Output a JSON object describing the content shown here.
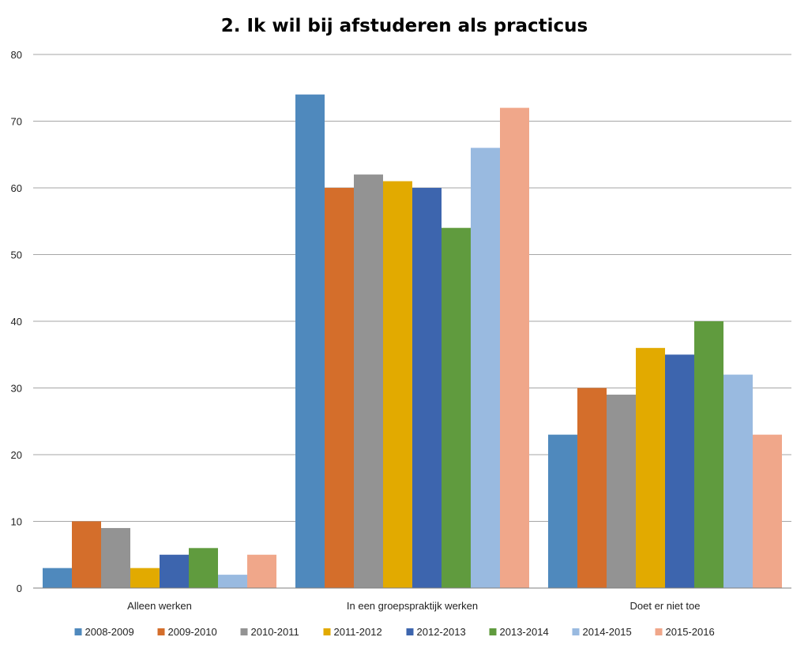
{
  "chart_data": {
    "type": "bar",
    "title": "2. Ik wil bij afstuderen als practicus",
    "xlabel": "",
    "ylabel": "",
    "ylim": [
      0,
      80
    ],
    "yticks": [
      0,
      10,
      20,
      30,
      40,
      50,
      60,
      70,
      80
    ],
    "grid": true,
    "legend_position": "bottom",
    "categories": [
      "Alleen werken",
      "In een groepspraktijk werken",
      "Doet er niet toe"
    ],
    "series": [
      {
        "name": "2008-2009",
        "color": "#4f89bd",
        "values": [
          3,
          74,
          23
        ]
      },
      {
        "name": "2009-2010",
        "color": "#d46e2b",
        "values": [
          10,
          60,
          30
        ]
      },
      {
        "name": "2010-2011",
        "color": "#939393",
        "values": [
          9,
          62,
          29
        ]
      },
      {
        "name": "2011-2012",
        "color": "#e2aa00",
        "values": [
          3,
          61,
          36
        ]
      },
      {
        "name": "2012-2013",
        "color": "#3d65ae",
        "values": [
          5,
          60,
          35
        ]
      },
      {
        "name": "2013-2014",
        "color": "#609b3e",
        "values": [
          6,
          54,
          40
        ]
      },
      {
        "name": "2014-2015",
        "color": "#99bae0",
        "values": [
          2,
          66,
          32
        ]
      },
      {
        "name": "2015-2016",
        "color": "#f0a78a",
        "values": [
          5,
          72,
          23
        ]
      }
    ]
  }
}
